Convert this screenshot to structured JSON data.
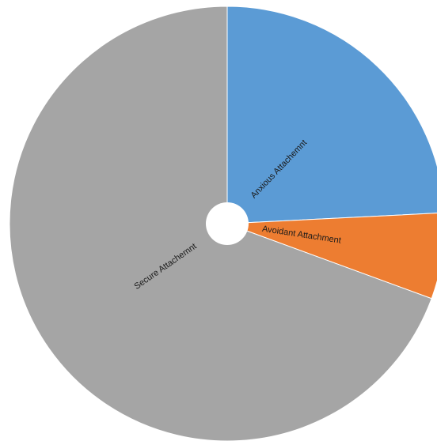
{
  "chart_data": {
    "type": "pie",
    "categories": [
      "Anxious Attachemnt",
      "Avoidant Attachment",
      "Secure Attachemnt"
    ],
    "values": [
      24.2,
      6.4,
      69.4
    ],
    "colors": [
      "#5B9BD5",
      "#ED7D31",
      "#A5A5A5"
    ],
    "start_angle_deg": 0,
    "direction": "clockwise",
    "hole": true
  }
}
